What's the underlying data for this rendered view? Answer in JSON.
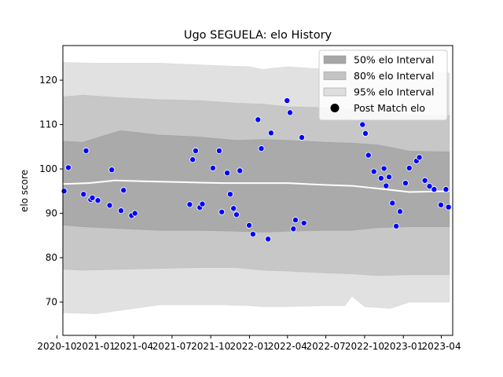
{
  "chart_data": {
    "type": "line",
    "title": "Ugo SEGUELA: elo History",
    "xlabel": "",
    "ylabel": "elo score",
    "xlim": [
      "2020-10-15",
      "2023-04-28"
    ],
    "ylim": [
      62.5,
      127.8
    ],
    "x_ticks": [
      {
        "date": "2020-10-01",
        "label": "2020-10"
      },
      {
        "date": "2021-01-01",
        "label": "2021-01"
      },
      {
        "date": "2021-04-01",
        "label": "2021-04"
      },
      {
        "date": "2021-07-01",
        "label": "2021-07"
      },
      {
        "date": "2021-10-01",
        "label": "2021-10"
      },
      {
        "date": "2022-01-01",
        "label": "2022-01"
      },
      {
        "date": "2022-04-01",
        "label": "2022-04"
      },
      {
        "date": "2022-07-01",
        "label": "2022-07"
      },
      {
        "date": "2022-10-01",
        "label": "2022-10"
      },
      {
        "date": "2023-01-01",
        "label": "2023-01"
      },
      {
        "date": "2023-04-01",
        "label": "2023-04"
      }
    ],
    "y_ticks": [
      70,
      80,
      90,
      100,
      110,
      120
    ],
    "grid": false,
    "legend": {
      "position": "top-right",
      "entries": [
        {
          "label": "50% elo Interval",
          "color": "#a6a6a6",
          "marker": "patch"
        },
        {
          "label": "80% elo Interval",
          "color": "#c4c4c4",
          "marker": "patch"
        },
        {
          "label": "95% elo Interval",
          "color": "#dedede",
          "marker": "patch"
        },
        {
          "label": "Post Match elo",
          "color": "#000000",
          "marker": "circle"
        }
      ]
    },
    "series": [
      {
        "name": "95% elo Interval",
        "kind": "band",
        "color": "#dedede",
        "x": [
          "2020-10-15",
          "2021-01-01",
          "2021-06-01",
          "2021-11-01",
          "2022-01-01",
          "2022-02-01",
          "2022-04-01",
          "2022-07-01",
          "2022-08-15",
          "2022-09-01",
          "2022-10-01",
          "2022-12-01",
          "2023-01-15",
          "2023-04-20"
        ],
        "upper": [
          124,
          123.8,
          123.8,
          123.2,
          123.0,
          122.4,
          123.0,
          122.4,
          122.2,
          122.0,
          122.0,
          121.2,
          121.6,
          121.6
        ],
        "lower": [
          67.6,
          67.4,
          69.4,
          69.4,
          69.2,
          69.0,
          69.0,
          69.2,
          69.2,
          71.4,
          69.0,
          68.6,
          70.0,
          70.0
        ]
      },
      {
        "name": "80% elo Interval",
        "kind": "band",
        "color": "#c4c4c4",
        "x": [
          "2020-10-15",
          "2020-12-01",
          "2021-03-01",
          "2021-06-01",
          "2021-09-01",
          "2021-12-01",
          "2022-02-01",
          "2022-04-01",
          "2022-07-01",
          "2022-09-01",
          "2022-11-01",
          "2023-01-15",
          "2023-04-20"
        ],
        "upper": [
          116.2,
          116.6,
          116.0,
          115.6,
          115.4,
          114.8,
          114.6,
          114.0,
          113.8,
          113.4,
          112.6,
          112.2,
          112.0
        ],
        "lower": [
          77.4,
          77.2,
          77.4,
          77.6,
          77.8,
          77.8,
          77.2,
          77.0,
          76.6,
          76.4,
          76.0,
          76.2,
          76.2
        ]
      },
      {
        "name": "50% elo Interval",
        "kind": "band",
        "color": "#a6a6a6",
        "x": [
          "2020-10-15",
          "2020-12-01",
          "2021-03-01",
          "2021-06-01",
          "2021-09-01",
          "2021-12-01",
          "2022-02-01",
          "2022-04-01",
          "2022-07-01",
          "2022-09-01",
          "2022-11-01",
          "2023-01-15",
          "2023-04-20"
        ],
        "upper": [
          106.2,
          106.0,
          108.6,
          107.6,
          107.2,
          106.4,
          106.6,
          106.4,
          106.0,
          105.8,
          105.4,
          104.0,
          103.8
        ],
        "lower": [
          87.4,
          87.0,
          86.6,
          86.2,
          86.2,
          86.0,
          85.8,
          86.0,
          86.2,
          86.2,
          86.8,
          87.0,
          87.0
        ]
      },
      {
        "name": "Mean elo",
        "kind": "line",
        "color": "#ffffff",
        "x": [
          "2020-10-15",
          "2020-12-15",
          "2021-02-15",
          "2021-05-01",
          "2021-08-01",
          "2021-11-01",
          "2022-01-15",
          "2022-04-01",
          "2022-07-01",
          "2022-09-01",
          "2022-11-01",
          "2023-01-15",
          "2023-04-20"
        ],
        "y": [
          96.6,
          96.8,
          97.4,
          97.2,
          97.0,
          96.8,
          96.8,
          96.8,
          96.4,
          96.2,
          95.6,
          94.8,
          95.0
        ]
      },
      {
        "name": "Post Match elo",
        "kind": "scatter",
        "color": "#0000ff",
        "x": [
          "2020-10-18",
          "2020-10-28",
          "2020-12-03",
          "2020-12-09",
          "2020-12-20",
          "2020-12-24",
          "2021-01-06",
          "2021-02-03",
          "2021-02-08",
          "2021-03-02",
          "2021-03-08",
          "2021-03-27",
          "2021-04-04",
          "2021-08-12",
          "2021-08-19",
          "2021-08-26",
          "2021-09-05",
          "2021-09-11",
          "2021-10-06",
          "2021-10-21",
          "2021-10-27",
          "2021-11-09",
          "2021-11-16",
          "2021-11-24",
          "2021-12-01",
          "2021-12-09",
          "2021-12-31",
          "2022-01-09",
          "2022-01-21",
          "2022-01-29",
          "2022-02-14",
          "2022-02-21",
          "2022-03-31",
          "2022-04-07",
          "2022-04-15",
          "2022-04-20",
          "2022-05-05",
          "2022-05-10",
          "2022-09-26",
          "2022-10-03",
          "2022-10-10",
          "2022-10-23",
          "2022-11-09",
          "2022-11-16",
          "2022-11-21",
          "2022-11-28",
          "2022-12-06",
          "2022-12-15",
          "2022-12-24",
          "2023-01-06",
          "2023-01-15",
          "2023-02-01",
          "2023-02-08",
          "2023-02-21",
          "2023-03-04",
          "2023-03-15",
          "2023-03-31",
          "2023-04-12",
          "2023-04-18"
        ],
        "y": [
          95.0,
          100.3,
          94.3,
          104.1,
          93.1,
          93.5,
          92.9,
          91.8,
          99.8,
          90.6,
          95.2,
          89.5,
          90.0,
          92.0,
          102.1,
          104.1,
          91.3,
          92.1,
          100.2,
          104.1,
          90.3,
          99.1,
          94.3,
          91.1,
          89.7,
          99.6,
          87.3,
          85.3,
          111.1,
          104.6,
          84.2,
          108.1,
          115.4,
          112.7,
          86.5,
          88.5,
          107.1,
          87.8,
          110.0,
          108.0,
          103.1,
          99.4,
          97.9,
          100.1,
          96.2,
          98.2,
          92.3,
          87.1,
          90.4,
          96.8,
          100.2,
          101.8,
          102.6,
          97.4,
          96.1,
          95.4,
          91.9,
          95.4,
          91.4
        ]
      }
    ]
  }
}
